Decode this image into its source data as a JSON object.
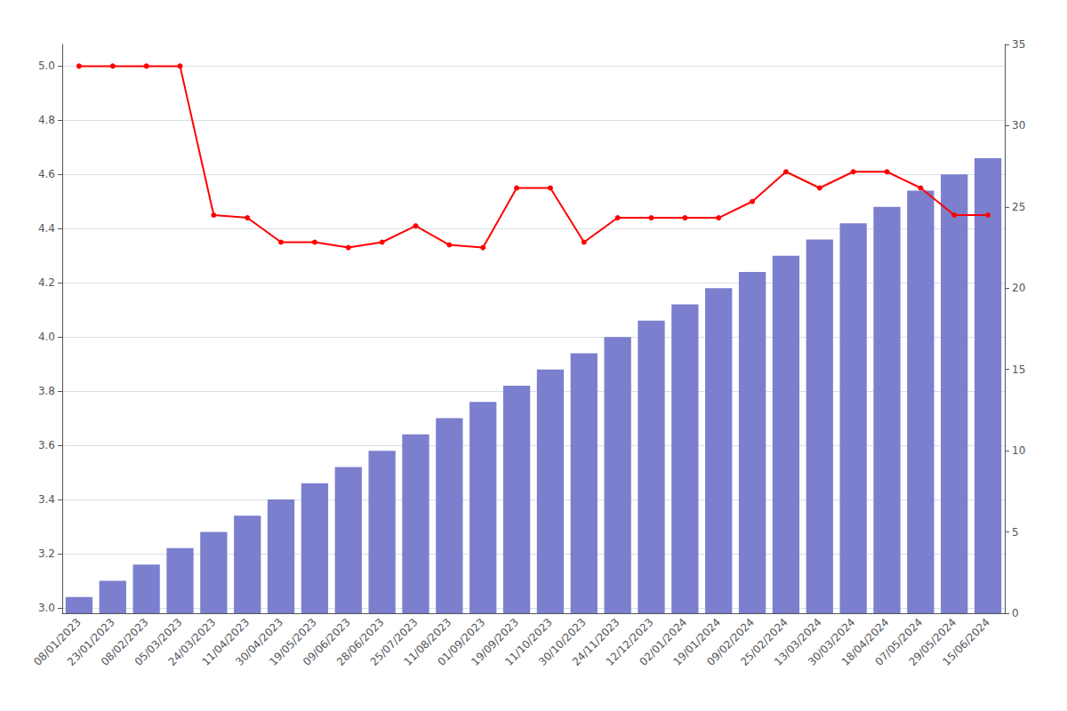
{
  "chart_data": {
    "type": "bar",
    "categories": [
      "08/01/2023",
      "23/01/2023",
      "08/02/2023",
      "05/03/2023",
      "24/03/2023",
      "11/04/2023",
      "30/04/2023",
      "19/05/2023",
      "09/06/2023",
      "28/06/2023",
      "25/07/2023",
      "11/08/2023",
      "01/09/2023",
      "19/09/2023",
      "11/10/2023",
      "30/10/2023",
      "24/11/2023",
      "12/12/2023",
      "02/01/2024",
      "19/01/2024",
      "09/02/2024",
      "25/02/2024",
      "13/03/2024",
      "30/03/2024",
      "18/04/2024",
      "07/05/2024",
      "29/05/2024",
      "15/06/2024"
    ],
    "series": [
      {
        "type": "bar",
        "axis": "y2",
        "color": "#7b7fce",
        "values": [
          1,
          2,
          3,
          4,
          5,
          6,
          7,
          8,
          9,
          10,
          11,
          12,
          13,
          14,
          15,
          16,
          17,
          18,
          19,
          20,
          21,
          22,
          23,
          24,
          25,
          26,
          27,
          28
        ]
      },
      {
        "type": "line",
        "color": "#ff0000",
        "marker": "circle",
        "values": [
          5.0,
          5.0,
          5.0,
          5.0,
          4.45,
          4.44,
          4.35,
          4.35,
          4.33,
          4.35,
          4.41,
          4.34,
          4.33,
          4.55,
          4.55,
          4.35,
          4.44,
          4.44,
          4.44,
          4.44,
          4.5,
          4.61,
          4.55,
          4.61,
          4.61,
          4.55,
          4.45,
          4.45
        ]
      }
    ],
    "ylim": [
      2.98,
      5.08
    ],
    "yticks": [
      {
        "value": 3.0,
        "label": "3.0"
      },
      3.2,
      3.4,
      3.6,
      3.8,
      {
        "value": 4.0,
        "label": "4.0"
      },
      4.2,
      4.4,
      4.6,
      4.8,
      {
        "value": 5.0,
        "label": "5.0"
      }
    ],
    "y2lim": [
      0,
      35
    ],
    "y2ticks": [
      0,
      5,
      10,
      15,
      20,
      25,
      30,
      35
    ],
    "grid": true
  }
}
